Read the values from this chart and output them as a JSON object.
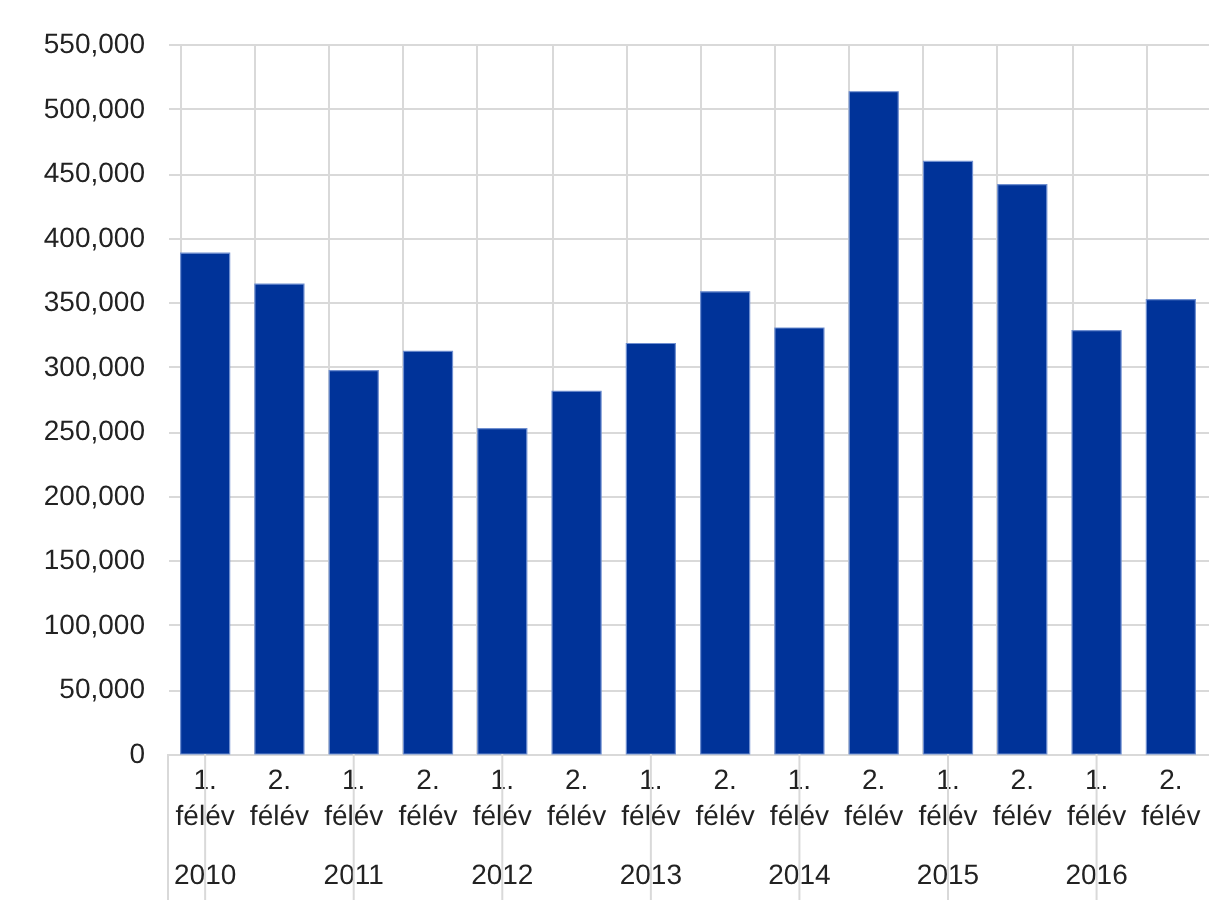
{
  "chart_data": {
    "type": "bar",
    "categories": [
      "1. félév",
      "2. félév",
      "1. félév",
      "2. félév",
      "1. félév",
      "2. félév",
      "1. félév",
      "2. félév",
      "1. félév",
      "2. félév",
      "1. félév",
      "2. félév",
      "1. félév",
      "2. félév"
    ],
    "values": [
      388000,
      364000,
      297000,
      312000,
      252000,
      281000,
      318000,
      358000,
      330000,
      513000,
      459000,
      441000,
      328000,
      352000
    ],
    "color": "#003399",
    "ylim": [
      0,
      550000
    ],
    "yticks": [
      0,
      {
        "value": 50000,
        "label": "50,000"
      },
      {
        "value": 100000,
        "label": "100,000"
      },
      {
        "value": 150000,
        "label": "150,000"
      },
      {
        "value": 200000,
        "label": "200,000"
      },
      {
        "value": 250000,
        "label": "250,000"
      },
      {
        "value": 300000,
        "label": "300,000"
      },
      {
        "value": 350000,
        "label": "350,000"
      },
      {
        "value": 400000,
        "label": "400,000"
      },
      {
        "value": 450000,
        "label": "450,000"
      },
      {
        "value": 500000,
        "label": "500,000"
      },
      {
        "value": 550000,
        "label": "550,000"
      }
    ],
    "grid": true,
    "annotations": [
      "2010",
      "2011",
      "2012",
      "2013",
      "2014",
      "2015",
      "2016"
    ]
  }
}
